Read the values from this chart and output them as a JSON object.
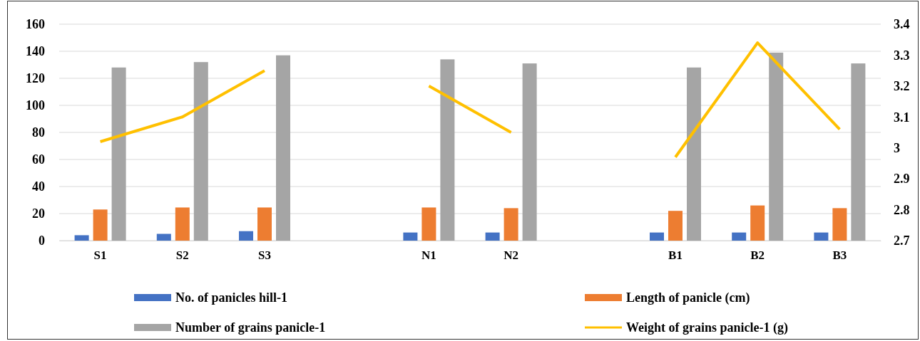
{
  "chart_data": {
    "type": "bar",
    "categories": [
      "S1",
      "S2",
      "S3",
      null,
      "N1",
      "N2",
      null,
      "B1",
      "B2",
      "B3"
    ],
    "series": [
      {
        "name": "No. of panicles hill-1",
        "color": "#4472c4",
        "values": [
          4,
          5,
          7,
          null,
          6,
          6,
          null,
          6,
          6,
          6
        ]
      },
      {
        "name": "Length of panicle (cm)",
        "color": "#ed7d31",
        "values": [
          23,
          24.5,
          24.5,
          null,
          24.5,
          24,
          null,
          22,
          26,
          24
        ]
      },
      {
        "name": "Number of grains panicle-1",
        "color": "#a5a5a5",
        "values": [
          128,
          132,
          137,
          null,
          134,
          131,
          null,
          128,
          139,
          131
        ]
      },
      {
        "name": "Weight of grains panicle-1 (g)",
        "color": "#ffc000",
        "type": "line",
        "axis": "y2",
        "values": [
          3.02,
          3.1,
          3.25,
          null,
          3.2,
          3.05,
          null,
          2.97,
          3.34,
          3.06
        ]
      }
    ],
    "ylim": [
      0,
      160
    ],
    "yticks": [
      0,
      20,
      40,
      60,
      80,
      100,
      120,
      140,
      160
    ],
    "y2lim": [
      2.7,
      3.4
    ],
    "y2ticks": [
      {
        "value": 2.7,
        "label": "2.7"
      },
      {
        "value": 2.8,
        "label": "2.8"
      },
      {
        "value": 2.9,
        "label": "2.9"
      },
      3,
      {
        "value": 3.1,
        "label": "3.1"
      },
      {
        "value": 3.2,
        "label": "3.2"
      },
      {
        "value": 3.3,
        "label": "3.3"
      },
      {
        "value": 3.4,
        "label": "3.4"
      }
    ],
    "grid": "y",
    "legend": "bottom",
    "marker": "none",
    "line_style": "solid"
  }
}
